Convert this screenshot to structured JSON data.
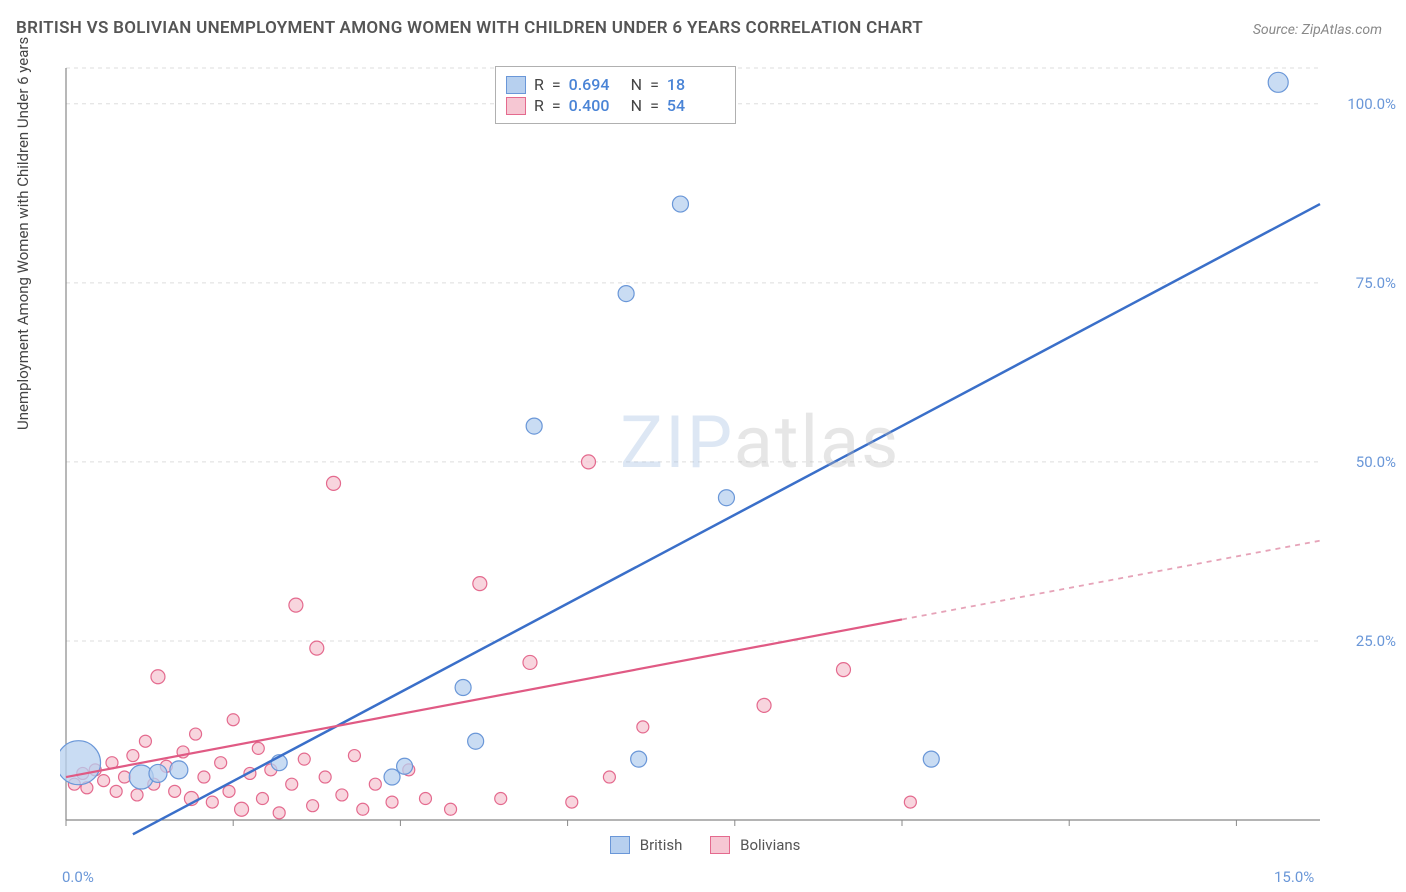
{
  "title": "BRITISH VS BOLIVIAN UNEMPLOYMENT AMONG WOMEN WITH CHILDREN UNDER 6 YEARS CORRELATION CHART",
  "source": "Source: ZipAtlas.com",
  "ylabel": "Unemployment Among Women with Children Under 6 years",
  "watermark_a": "ZIP",
  "watermark_b": "atlas",
  "chart": {
    "type": "scatter-correlation",
    "xlim": [
      0,
      15
    ],
    "ylim": [
      0,
      105
    ],
    "xtick_labels": [
      "0.0%",
      "15.0%"
    ],
    "xtick_pos": [
      0,
      15
    ],
    "ytick_labels": [
      "25.0%",
      "50.0%",
      "75.0%",
      "100.0%"
    ],
    "ytick_pos": [
      25,
      50,
      75,
      100
    ],
    "x_minor_step": 2,
    "y_grid": [
      25,
      50,
      75,
      100,
      105
    ],
    "axis_color": "#888888",
    "grid_color": "#dddddd",
    "tick_label_color": "#6a97d8",
    "plot_bg": "#ffffff",
    "series": {
      "british": {
        "label": "British",
        "color_fill": "#b7d0ef",
        "color_stroke": "#6a97d8",
        "r_value": "0.694",
        "n_value": "18",
        "trend": {
          "x1": 0.8,
          "y1": -2,
          "x2": 15,
          "y2": 86,
          "dash": false
        },
        "points": [
          {
            "x": 0.15,
            "y": 8,
            "r": 22
          },
          {
            "x": 0.9,
            "y": 6,
            "r": 12
          },
          {
            "x": 1.1,
            "y": 6.5,
            "r": 9
          },
          {
            "x": 1.35,
            "y": 7,
            "r": 9
          },
          {
            "x": 2.55,
            "y": 8,
            "r": 8
          },
          {
            "x": 3.9,
            "y": 6,
            "r": 8
          },
          {
            "x": 4.05,
            "y": 7.5,
            "r": 8
          },
          {
            "x": 4.75,
            "y": 18.5,
            "r": 8
          },
          {
            "x": 4.9,
            "y": 11,
            "r": 8
          },
          {
            "x": 5.6,
            "y": 55,
            "r": 8
          },
          {
            "x": 6.85,
            "y": 8.5,
            "r": 8
          },
          {
            "x": 6.7,
            "y": 73.5,
            "r": 8
          },
          {
            "x": 7.35,
            "y": 86,
            "r": 8
          },
          {
            "x": 7.9,
            "y": 45,
            "r": 8
          },
          {
            "x": 10.35,
            "y": 8.5,
            "r": 8
          },
          {
            "x": 14.5,
            "y": 103,
            "r": 10
          }
        ]
      },
      "bolivians": {
        "label": "Bolivians",
        "color_fill": "#f6c7d3",
        "color_stroke": "#e46a8e",
        "r_value": "0.400",
        "n_value": "54",
        "trend_solid": {
          "x1": 0,
          "y1": 6,
          "x2": 10,
          "y2": 28
        },
        "trend_dashed": {
          "x1": 10,
          "y1": 28,
          "x2": 15,
          "y2": 39
        },
        "points": [
          {
            "x": 0.1,
            "y": 5,
            "r": 6
          },
          {
            "x": 0.2,
            "y": 6.5,
            "r": 6
          },
          {
            "x": 0.25,
            "y": 4.5,
            "r": 6
          },
          {
            "x": 0.35,
            "y": 7,
            "r": 6
          },
          {
            "x": 0.45,
            "y": 5.5,
            "r": 6
          },
          {
            "x": 0.55,
            "y": 8,
            "r": 6
          },
          {
            "x": 0.6,
            "y": 4,
            "r": 6
          },
          {
            "x": 0.7,
            "y": 6,
            "r": 6
          },
          {
            "x": 0.8,
            "y": 9,
            "r": 6
          },
          {
            "x": 0.85,
            "y": 3.5,
            "r": 6
          },
          {
            "x": 0.95,
            "y": 11,
            "r": 6
          },
          {
            "x": 1.05,
            "y": 5,
            "r": 6
          },
          {
            "x": 1.1,
            "y": 20,
            "r": 7
          },
          {
            "x": 1.2,
            "y": 7.5,
            "r": 6
          },
          {
            "x": 1.3,
            "y": 4,
            "r": 6
          },
          {
            "x": 1.4,
            "y": 9.5,
            "r": 6
          },
          {
            "x": 1.5,
            "y": 3,
            "r": 7
          },
          {
            "x": 1.55,
            "y": 12,
            "r": 6
          },
          {
            "x": 1.65,
            "y": 6,
            "r": 6
          },
          {
            "x": 1.75,
            "y": 2.5,
            "r": 6
          },
          {
            "x": 1.85,
            "y": 8,
            "r": 6
          },
          {
            "x": 1.95,
            "y": 4,
            "r": 6
          },
          {
            "x": 2.0,
            "y": 14,
            "r": 6
          },
          {
            "x": 2.1,
            "y": 1.5,
            "r": 7
          },
          {
            "x": 2.2,
            "y": 6.5,
            "r": 6
          },
          {
            "x": 2.3,
            "y": 10,
            "r": 6
          },
          {
            "x": 2.35,
            "y": 3,
            "r": 6
          },
          {
            "x": 2.45,
            "y": 7,
            "r": 6
          },
          {
            "x": 2.55,
            "y": 1,
            "r": 6
          },
          {
            "x": 2.7,
            "y": 5,
            "r": 6
          },
          {
            "x": 2.75,
            "y": 30,
            "r": 7
          },
          {
            "x": 2.85,
            "y": 8.5,
            "r": 6
          },
          {
            "x": 2.95,
            "y": 2,
            "r": 6
          },
          {
            "x": 3.0,
            "y": 24,
            "r": 7
          },
          {
            "x": 3.1,
            "y": 6,
            "r": 6
          },
          {
            "x": 3.2,
            "y": 47,
            "r": 7
          },
          {
            "x": 3.3,
            "y": 3.5,
            "r": 6
          },
          {
            "x": 3.45,
            "y": 9,
            "r": 6
          },
          {
            "x": 3.55,
            "y": 1.5,
            "r": 6
          },
          {
            "x": 3.7,
            "y": 5,
            "r": 6
          },
          {
            "x": 3.9,
            "y": 2.5,
            "r": 6
          },
          {
            "x": 4.1,
            "y": 7,
            "r": 6
          },
          {
            "x": 4.3,
            "y": 3,
            "r": 6
          },
          {
            "x": 4.6,
            "y": 1.5,
            "r": 6
          },
          {
            "x": 4.95,
            "y": 33,
            "r": 7
          },
          {
            "x": 5.2,
            "y": 3,
            "r": 6
          },
          {
            "x": 5.55,
            "y": 22,
            "r": 7
          },
          {
            "x": 6.05,
            "y": 2.5,
            "r": 6
          },
          {
            "x": 6.25,
            "y": 50,
            "r": 7
          },
          {
            "x": 6.9,
            "y": 13,
            "r": 6
          },
          {
            "x": 8.35,
            "y": 16,
            "r": 7
          },
          {
            "x": 9.3,
            "y": 21,
            "r": 7
          },
          {
            "x": 10.1,
            "y": 2.5,
            "r": 6
          },
          {
            "x": 6.5,
            "y": 6,
            "r": 6
          }
        ]
      }
    }
  },
  "legend_top": {
    "r_label": "R",
    "n_label": "N",
    "eq": "="
  },
  "legend_bottom": {
    "items": [
      "british",
      "bolivians"
    ]
  }
}
